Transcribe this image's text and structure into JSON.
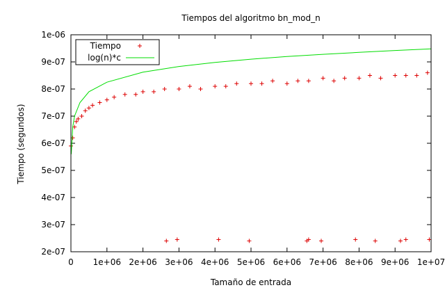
{
  "chart_data": {
    "type": "scatter",
    "title": "Tiempos del algoritmo bn_mod_n",
    "xlabel": "Tamaño de entrada",
    "ylabel": "Tiempo (segundos)",
    "xlim": [
      0,
      10000000
    ],
    "ylim": [
      2e-07,
      1e-06
    ],
    "x_ticks": [
      0,
      1000000,
      2000000,
      3000000,
      4000000,
      5000000,
      6000000,
      7000000,
      8000000,
      9000000,
      10000000
    ],
    "x_tick_labels": [
      "0",
      "1e+06",
      "2e+06",
      "3e+06",
      "4e+06",
      "5e+06",
      "6e+06",
      "7e+06",
      "8e+06",
      "9e+06",
      "1e+07"
    ],
    "y_ticks": [
      2e-07,
      3e-07,
      4e-07,
      5e-07,
      6e-07,
      7e-07,
      8e-07,
      9e-07,
      1e-06
    ],
    "y_tick_labels": [
      "2e-07",
      "3e-07",
      "4e-07",
      "5e-07",
      "6e-07",
      "7e-07",
      "8e-07",
      "9e-07",
      "1e-06"
    ],
    "legend_position": "top-left",
    "grid": false,
    "series": [
      {
        "name": "Tiempo",
        "style": "points",
        "marker": "+",
        "color": "#dd0000",
        "x": [
          0,
          50000,
          100000,
          150000,
          200000,
          300000,
          400000,
          500000,
          600000,
          800000,
          1000000,
          1200000,
          1500000,
          1800000,
          2000000,
          2300000,
          2600000,
          3000000,
          3300000,
          3600000,
          4000000,
          4300000,
          4600000,
          5000000,
          5300000,
          5600000,
          6000000,
          6300000,
          6600000,
          7000000,
          7300000,
          7600000,
          8000000,
          8300000,
          8600000,
          9000000,
          9300000,
          9600000,
          9900000,
          2650000,
          2950000,
          4100000,
          4950000,
          6550000,
          6600000,
          6950000,
          7900000,
          8450000,
          9150000,
          9300000,
          9950000
        ],
        "y": [
          5.9e-07,
          6.2e-07,
          6.6e-07,
          6.8e-07,
          6.9e-07,
          7e-07,
          7.2e-07,
          7.3e-07,
          7.4e-07,
          7.5e-07,
          7.6e-07,
          7.7e-07,
          7.8e-07,
          7.8e-07,
          7.9e-07,
          7.9e-07,
          8e-07,
          8e-07,
          8.1e-07,
          8e-07,
          8.1e-07,
          8.1e-07,
          8.2e-07,
          8.2e-07,
          8.2e-07,
          8.3e-07,
          8.2e-07,
          8.3e-07,
          8.3e-07,
          8.4e-07,
          8.3e-07,
          8.4e-07,
          8.4e-07,
          8.5e-07,
          8.4e-07,
          8.5e-07,
          8.5e-07,
          8.5e-07,
          8.6e-07,
          2.4e-07,
          2.45e-07,
          2.45e-07,
          2.4e-07,
          2.4e-07,
          2.45e-07,
          2.4e-07,
          2.45e-07,
          2.4e-07,
          2.4e-07,
          2.45e-07,
          2.45e-07
        ]
      },
      {
        "name": "log(n)*c",
        "style": "line",
        "color": "#00dd00",
        "x": [
          10000,
          50000,
          100000,
          250000,
          500000,
          1000000,
          2000000,
          3000000,
          4000000,
          5000000,
          6000000,
          7000000,
          8000000,
          9000000,
          10000000
        ],
        "y": [
          5.6e-07,
          6.6e-07,
          7e-07,
          7.5e-07,
          7.9e-07,
          8.25e-07,
          8.62e-07,
          8.83e-07,
          8.98e-07,
          9.1e-07,
          9.2e-07,
          9.28e-07,
          9.35e-07,
          9.42e-07,
          9.48e-07
        ]
      }
    ]
  }
}
